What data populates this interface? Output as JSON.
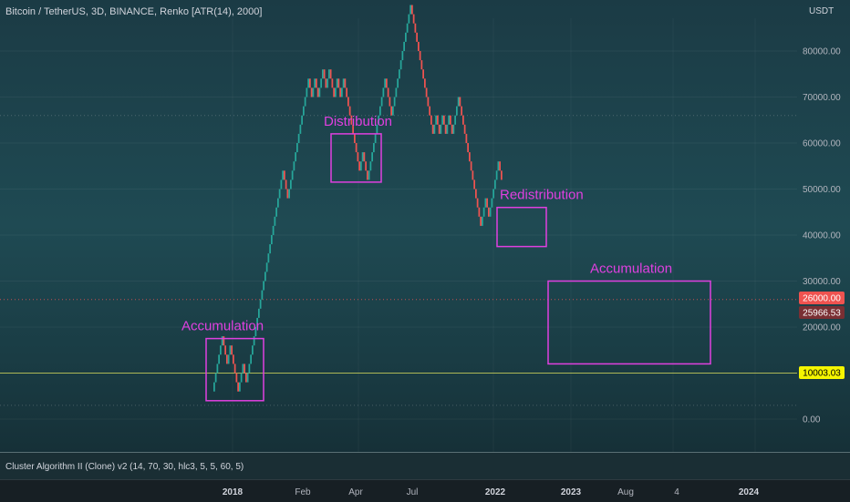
{
  "header": {
    "title": "Bitcoin / TetherUS, 3D, BINANCE, Renko [ATR(14), 2000]",
    "currency": "USDT"
  },
  "indicator": {
    "label": "Cluster Algorithm II (Clone) v2 (14, 70, 30, hlc3, 5, 5, 60, 5)"
  },
  "colors": {
    "up": "#26a69a",
    "down": "#ef5350",
    "annotation": "#e040e0",
    "price_line": "#ef5350",
    "level_line": "#e8e85a"
  },
  "chart_data": {
    "type": "renko",
    "brick_size": 2000,
    "y_axis": {
      "ticks": [
        "80000.00",
        "70000.00",
        "60000.00",
        "50000.00",
        "40000.00",
        "30000.00",
        "20000.00",
        "10000.00",
        "0.00"
      ],
      "ylim": [
        -2000,
        88000
      ]
    },
    "x_axis": {
      "ticks": [
        {
          "label": "2018",
          "bold": true
        },
        {
          "label": "Feb",
          "bold": false
        },
        {
          "label": "Apr",
          "bold": false
        },
        {
          "label": "Jul",
          "bold": false
        },
        {
          "label": "2022",
          "bold": true
        },
        {
          "label": "2023",
          "bold": true
        },
        {
          "label": "Aug",
          "bold": false
        },
        {
          "label": "4",
          "bold": false
        },
        {
          "label": "2024",
          "bold": true
        }
      ]
    },
    "bricks": [
      {
        "dir": "up",
        "n": 6
      },
      {
        "dir": "down",
        "n": 3
      },
      {
        "dir": "up",
        "n": 2
      },
      {
        "dir": "down",
        "n": 5
      },
      {
        "dir": "up",
        "n": 3
      },
      {
        "dir": "down",
        "n": 2
      },
      {
        "dir": "up",
        "n": 23
      },
      {
        "dir": "down",
        "n": 3
      },
      {
        "dir": "up",
        "n": 13
      },
      {
        "dir": "down",
        "n": 2
      },
      {
        "dir": "up",
        "n": 2
      },
      {
        "dir": "down",
        "n": 2
      },
      {
        "dir": "up",
        "n": 3
      },
      {
        "dir": "down",
        "n": 2
      },
      {
        "dir": "up",
        "n": 2
      },
      {
        "dir": "down",
        "n": 3
      },
      {
        "dir": "up",
        "n": 2
      },
      {
        "dir": "down",
        "n": 2
      },
      {
        "dir": "up",
        "n": 2
      },
      {
        "dir": "down",
        "n": 10
      },
      {
        "dir": "up",
        "n": 2
      },
      {
        "dir": "down",
        "n": 3
      },
      {
        "dir": "up",
        "n": 11
      },
      {
        "dir": "down",
        "n": 4
      },
      {
        "dir": "up",
        "n": 12
      },
      {
        "dir": "down",
        "n": 14
      },
      {
        "dir": "up",
        "n": 2
      },
      {
        "dir": "down",
        "n": 2
      },
      {
        "dir": "up",
        "n": 2
      },
      {
        "dir": "down",
        "n": 2
      },
      {
        "dir": "up",
        "n": 2
      },
      {
        "dir": "down",
        "n": 2
      },
      {
        "dir": "up",
        "n": 4
      },
      {
        "dir": "down",
        "n": 14
      },
      {
        "dir": "up",
        "n": 3
      },
      {
        "dir": "down",
        "n": 2
      },
      {
        "dir": "up",
        "n": 6
      },
      {
        "dir": "down",
        "n": 2
      }
    ],
    "start_price": 6000,
    "price_labels": [
      {
        "value": 26000,
        "text": "26000.00",
        "bg": "#ef5350",
        "fg": "#ffffff"
      },
      {
        "value": 25966.53,
        "text": "25966.53",
        "bg": "#7a2f33",
        "fg": "#ffffff"
      },
      {
        "value": 10003.03,
        "text": "10003.03",
        "bg": "#f5f500",
        "fg": "#000000"
      }
    ],
    "reference_lines": [
      26000,
      10003.03,
      3000,
      66000
    ],
    "annotations": [
      {
        "label": "Accumulation",
        "y0": 4000,
        "y1": 17500
      },
      {
        "label": "Distribution",
        "y0": 51500,
        "y1": 62000
      },
      {
        "label": "Redistribution",
        "y0": 37500,
        "y1": 46000
      },
      {
        "label": "Accumulation",
        "y0": 12000,
        "y1": 30000
      }
    ]
  }
}
